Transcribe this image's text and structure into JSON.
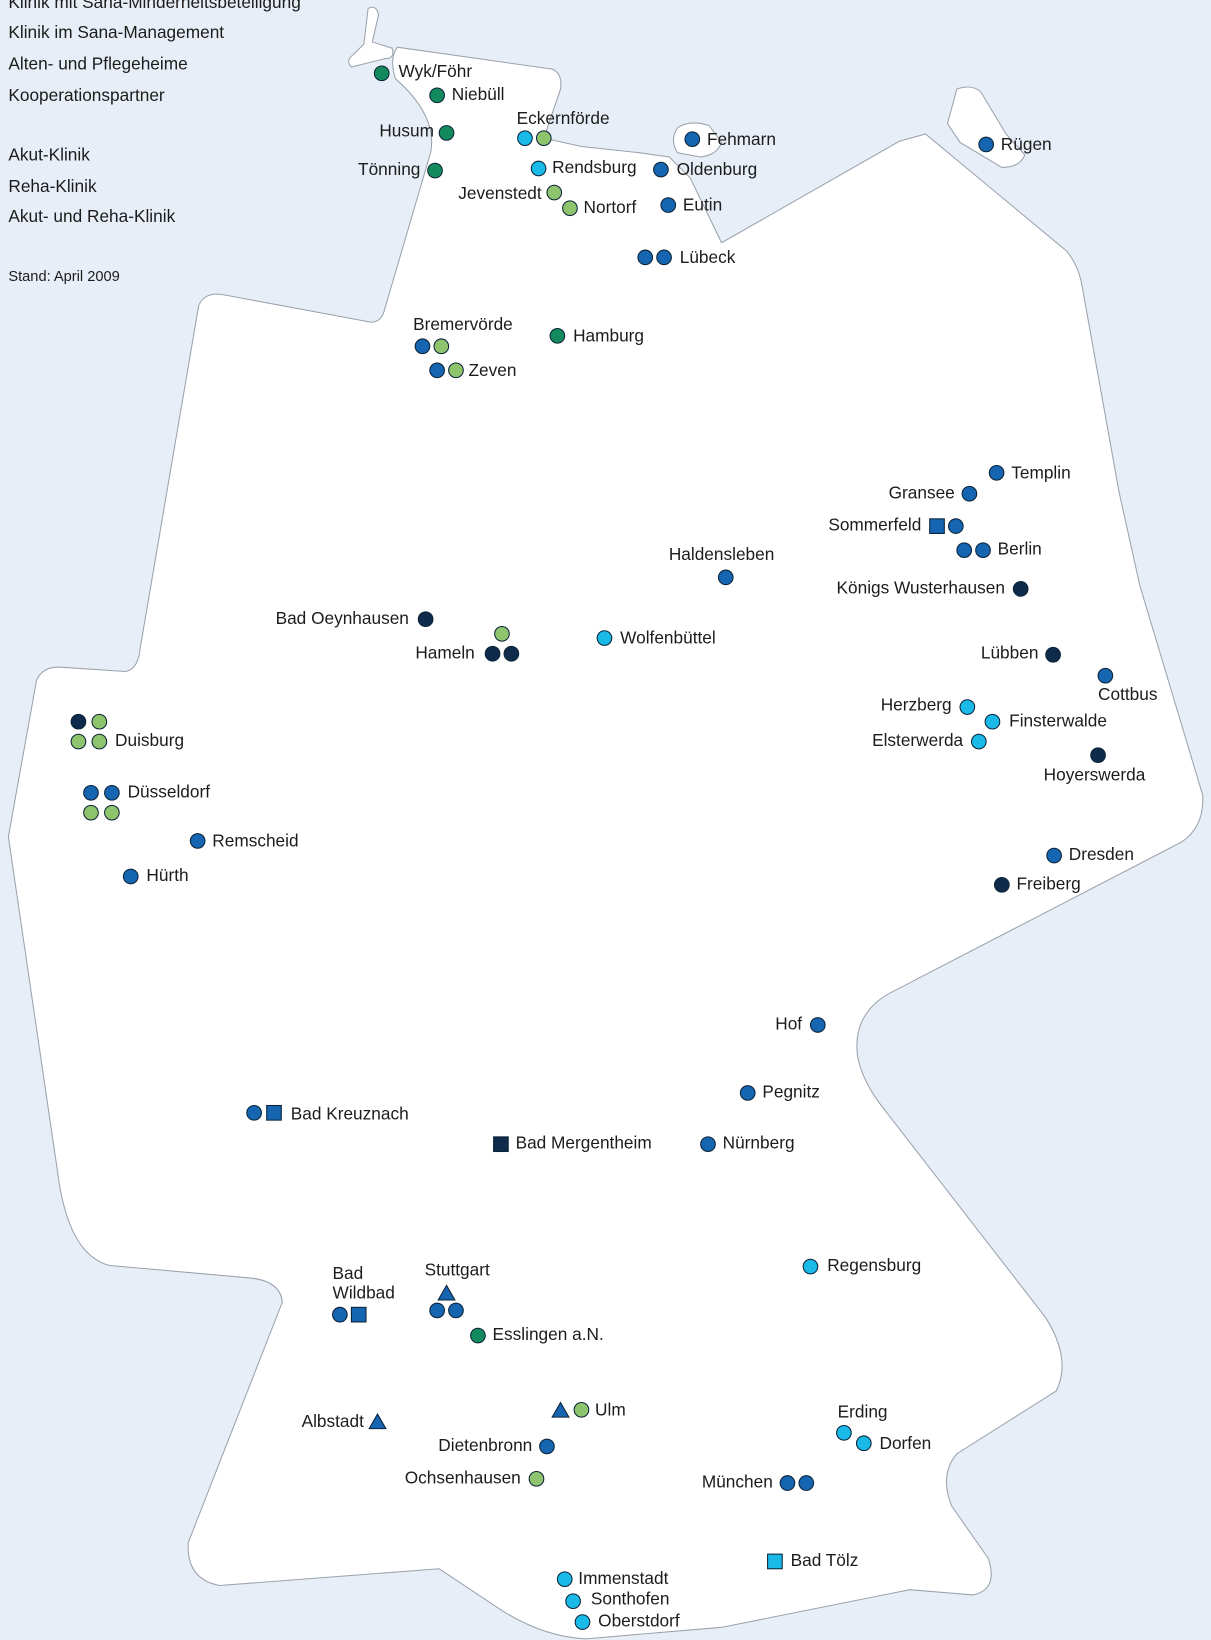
{
  "legend": {
    "colors": [
      "Klinik mit Sana-Minderheitsbeteiligung",
      "Klinik im Sana-Management",
      "Alten- und Pflegeheime",
      "Kooperationspartner"
    ],
    "shapes": [
      "Akut-Klinik",
      "Reha-Klinik",
      "Akut- und Reha-Klinik"
    ],
    "note": "Stand: April 2009"
  },
  "marker_colors": {
    "b": "#1565b0",
    "n": "#0e2b4b",
    "t": "#138a5e",
    "g": "#8fc46f",
    "c": "#19b9e8"
  },
  "cities": [
    {
      "name": "Wyk/Föhr",
      "markers": [
        "t.c"
      ]
    },
    {
      "name": "Niebüll",
      "markers": [
        "t.c"
      ]
    },
    {
      "name": "Husum",
      "markers": [
        "t.c"
      ]
    },
    {
      "name": "Tönning",
      "markers": [
        "t.c"
      ]
    },
    {
      "name": "Eckernförde",
      "markers": [
        "c.c",
        "g.c"
      ]
    },
    {
      "name": "Rendsburg",
      "markers": [
        "c.c"
      ]
    },
    {
      "name": "Jevenstedt",
      "markers": [
        "g.c"
      ]
    },
    {
      "name": "Nortorf",
      "markers": [
        "g.c"
      ]
    },
    {
      "name": "Fehmarn",
      "markers": [
        "b.c"
      ]
    },
    {
      "name": "Oldenburg",
      "markers": [
        "b.c"
      ]
    },
    {
      "name": "Eutin",
      "markers": [
        "b.c"
      ]
    },
    {
      "name": "Lübeck",
      "markers": [
        "b.c",
        "b.c"
      ]
    },
    {
      "name": "Rügen",
      "markers": [
        "b.c"
      ]
    },
    {
      "name": "Bremervörde",
      "markers": [
        "b.c",
        "g.c"
      ]
    },
    {
      "name": "Zeven",
      "markers": [
        "b.c",
        "g.c"
      ]
    },
    {
      "name": "Hamburg",
      "markers": [
        "t.c"
      ]
    },
    {
      "name": "Templin",
      "markers": [
        "b.c"
      ]
    },
    {
      "name": "Gransee",
      "markers": [
        "b.c"
      ]
    },
    {
      "name": "Sommerfeld",
      "markers": [
        "b.s",
        "b.c"
      ]
    },
    {
      "name": "Berlin",
      "markers": [
        "b.c",
        "b.c"
      ]
    },
    {
      "name": "Haldensleben",
      "markers": [
        "b.c"
      ]
    },
    {
      "name": "Königs Wusterhausen",
      "markers": [
        "n.c"
      ]
    },
    {
      "name": "Bad Oeynhausen",
      "markers": [
        "n.c"
      ]
    },
    {
      "name": "Hameln",
      "markers": [
        "g.c",
        "n.c",
        "n.c"
      ]
    },
    {
      "name": "Wolfenbüttel",
      "markers": [
        "c.c"
      ]
    },
    {
      "name": "Lübben",
      "markers": [
        "n.c"
      ]
    },
    {
      "name": "Cottbus",
      "markers": [
        "b.c"
      ]
    },
    {
      "name": "Herzberg",
      "markers": [
        "c.c"
      ]
    },
    {
      "name": "Finsterwalde",
      "markers": [
        "c.c"
      ]
    },
    {
      "name": "Elsterwerda",
      "markers": [
        "c.c"
      ]
    },
    {
      "name": "Hoyerswerda",
      "markers": [
        "n.c"
      ]
    },
    {
      "name": "Duisburg",
      "markers": [
        "n.c",
        "g.c",
        "g.c",
        "g.c"
      ]
    },
    {
      "name": "Düsseldorf",
      "markers": [
        "b.c",
        "b.c",
        "g.c",
        "g.c"
      ]
    },
    {
      "name": "Remscheid",
      "markers": [
        "b.c"
      ]
    },
    {
      "name": "Hürth",
      "markers": [
        "b.c"
      ]
    },
    {
      "name": "Dresden",
      "markers": [
        "b.c"
      ]
    },
    {
      "name": "Freiberg",
      "markers": [
        "n.c"
      ]
    },
    {
      "name": "Hof",
      "markers": [
        "b.c"
      ]
    },
    {
      "name": "Pegnitz",
      "markers": [
        "b.c"
      ]
    },
    {
      "name": "Bad Kreuznach",
      "markers": [
        "b.c",
        "b.s"
      ]
    },
    {
      "name": "Bad Mergentheim",
      "markers": [
        "n.s"
      ]
    },
    {
      "name": "Nürnberg",
      "markers": [
        "b.c"
      ]
    },
    {
      "name": "Regensburg",
      "markers": [
        "c.c"
      ]
    },
    {
      "name": "Bad Wildbad",
      "markers": [
        "b.c",
        "b.s"
      ]
    },
    {
      "name": "Stuttgart",
      "markers": [
        "b.t",
        "b.c",
        "b.c"
      ]
    },
    {
      "name": "Esslingen a.N.",
      "markers": [
        "t.c"
      ]
    },
    {
      "name": "Albstadt",
      "markers": [
        "b.t"
      ]
    },
    {
      "name": "Ulm",
      "markers": [
        "b.t",
        "g.c"
      ]
    },
    {
      "name": "Dietenbronn",
      "markers": [
        "b.c"
      ]
    },
    {
      "name": "Ochsenhausen",
      "markers": [
        "g.c"
      ]
    },
    {
      "name": "Erding",
      "markers": [
        "c.c"
      ]
    },
    {
      "name": "Dorfen",
      "markers": [
        "c.c"
      ]
    },
    {
      "name": "München",
      "markers": [
        "b.c",
        "b.c"
      ]
    },
    {
      "name": "Bad Tölz",
      "markers": [
        "c.s"
      ]
    },
    {
      "name": "Immenstadt",
      "markers": [
        "c.c"
      ]
    },
    {
      "name": "Sonthofen",
      "markers": [
        "c.c"
      ]
    },
    {
      "name": "Oberstdorf",
      "markers": [
        "c.c"
      ]
    }
  ]
}
